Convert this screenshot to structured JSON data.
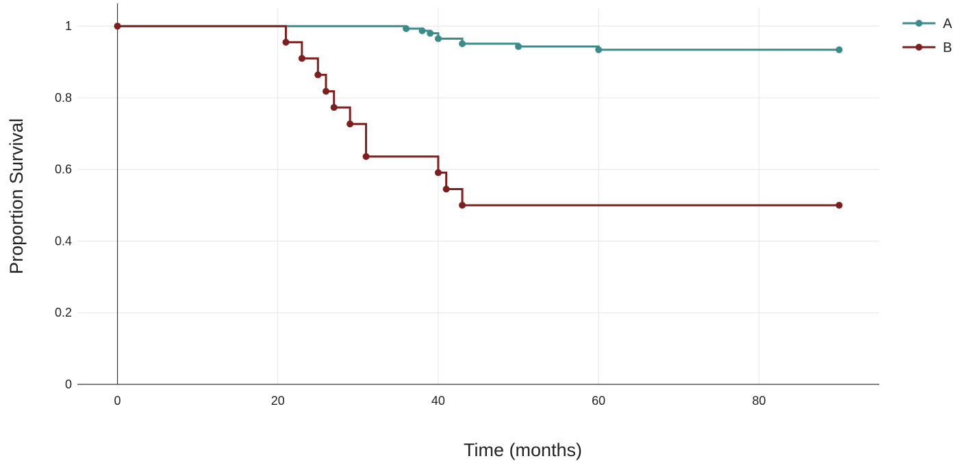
{
  "chart_data": {
    "type": "line",
    "step": true,
    "title": "",
    "xlabel": "Time  (months)",
    "ylabel": "Proportion Survival",
    "xlim": [
      -5,
      95
    ],
    "ylim": [
      0,
      1.05
    ],
    "x_ticks": [
      0,
      20,
      40,
      60,
      80
    ],
    "y_ticks": [
      0,
      0.2,
      0.4,
      0.6,
      0.8,
      1
    ],
    "x_tick_labels": [
      "0",
      "20",
      "40",
      "60",
      "80"
    ],
    "y_tick_labels": [
      "0",
      "0.2",
      "0.4",
      "0.6",
      "0.8",
      "1"
    ],
    "grid": true,
    "legend_position": "top-right",
    "series": [
      {
        "name": "A",
        "color": "#3a8c8a",
        "x": [
          0,
          36,
          38,
          39,
          40,
          43,
          50,
          60,
          90
        ],
        "y": [
          1,
          0.993,
          0.987,
          0.98,
          0.965,
          0.951,
          0.943,
          0.934,
          0.934
        ]
      },
      {
        "name": "B",
        "color": "#7e1e1e",
        "x": [
          0,
          21,
          23,
          25,
          26,
          27,
          29,
          31,
          40,
          41,
          43,
          90
        ],
        "y": [
          1,
          0.955,
          0.91,
          0.864,
          0.818,
          0.773,
          0.727,
          0.636,
          0.591,
          0.545,
          0.5,
          0.5
        ]
      }
    ]
  }
}
